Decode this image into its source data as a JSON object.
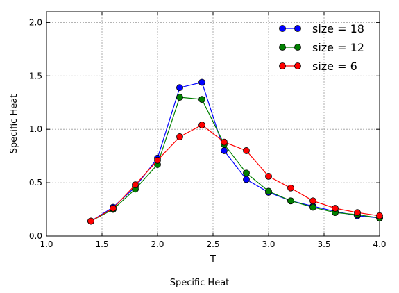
{
  "caption": "Specific Heat",
  "chart_data": {
    "type": "line",
    "xlabel": "T",
    "ylabel": "Specific Heat",
    "xlim": [
      1.0,
      4.0
    ],
    "ylim": [
      0.0,
      2.1
    ],
    "xticks": [
      1.0,
      1.5,
      2.0,
      2.5,
      3.0,
      3.5,
      4.0
    ],
    "yticks": [
      0.0,
      0.5,
      1.0,
      1.5,
      2.0
    ],
    "xtick_labels": [
      "1.0",
      "1.5",
      "2.0",
      "2.5",
      "3.0",
      "3.5",
      "4.0"
    ],
    "ytick_labels": [
      "0.0",
      "0.5",
      "1.0",
      "1.5",
      "2.0"
    ],
    "grid": true,
    "legend_position": "top-right",
    "x": [
      1.4,
      1.6,
      1.8,
      2.0,
      2.2,
      2.4,
      2.6,
      2.8,
      3.0,
      3.2,
      3.4,
      3.6,
      3.8,
      4.0
    ],
    "series": [
      {
        "name": "size = 18",
        "color": "#0000ff",
        "values": [
          0.14,
          0.27,
          0.46,
          0.73,
          1.39,
          1.44,
          0.8,
          0.53,
          0.41,
          0.33,
          0.28,
          0.23,
          0.19,
          0.17
        ]
      },
      {
        "name": "size = 12",
        "color": "#008000",
        "values": [
          0.14,
          0.25,
          0.44,
          0.67,
          1.3,
          1.28,
          0.86,
          0.59,
          0.42,
          0.33,
          0.27,
          0.22,
          0.2,
          0.17
        ]
      },
      {
        "name": "size = 6",
        "color": "#ff0000",
        "values": [
          0.14,
          0.26,
          0.48,
          0.71,
          0.93,
          1.04,
          0.88,
          0.8,
          0.56,
          0.45,
          0.33,
          0.26,
          0.22,
          0.19
        ]
      }
    ]
  }
}
